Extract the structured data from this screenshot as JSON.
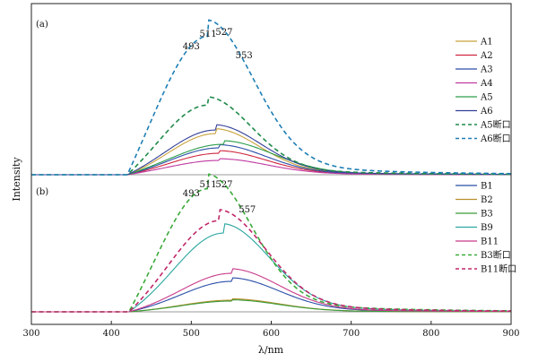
{
  "chart_data": {
    "type": "line",
    "xlabel": "λ/nm",
    "ylabel": "Intensity",
    "xlim": [
      300,
      900
    ],
    "x_ticks": [
      "300",
      "400",
      "500",
      "600",
      "700",
      "800",
      "900"
    ],
    "grid": false,
    "legend_placement": "right",
    "panels": [
      {
        "label": "(a)",
        "peak_labels": [
          "493",
          "511",
          "527",
          "553"
        ],
        "series": [
          {
            "name": "A1",
            "color": "#c8a23a",
            "dashed": false,
            "peak": 530,
            "amp": 0.46,
            "width": 55
          },
          {
            "name": "A2",
            "color": "#d0263f",
            "dashed": false,
            "peak": 535,
            "amp": 0.24,
            "width": 58
          },
          {
            "name": "A3",
            "color": "#2b4ea8",
            "dashed": false,
            "peak": 535,
            "amp": 0.3,
            "width": 58
          },
          {
            "name": "A4",
            "color": "#c03aa0",
            "dashed": false,
            "peak": 535,
            "amp": 0.16,
            "width": 60
          },
          {
            "name": "A5",
            "color": "#2a9d4a",
            "dashed": false,
            "peak": 540,
            "amp": 0.34,
            "width": 62
          },
          {
            "name": "A6",
            "color": "#33409a",
            "dashed": false,
            "peak": 530,
            "amp": 0.5,
            "width": 57
          },
          {
            "name": "A5断口",
            "color": "#1f8a4a",
            "dashed": true,
            "peak": 520,
            "amp": 0.78,
            "width": 55
          },
          {
            "name": "A6断口",
            "color": "#1e7fb5",
            "dashed": true,
            "peak": 520,
            "amp": 1.55,
            "width": 58
          }
        ]
      },
      {
        "label": "(b)",
        "peak_labels": [
          "493",
          "511",
          "527",
          "557"
        ],
        "series": [
          {
            "name": "B1",
            "color": "#2b4ea8",
            "dashed": false,
            "peak": 550,
            "amp": 0.34,
            "width": 60
          },
          {
            "name": "B2",
            "color": "#b8902a",
            "dashed": false,
            "peak": 550,
            "amp": 0.13,
            "width": 60
          },
          {
            "name": "B3",
            "color": "#3a9a3a",
            "dashed": false,
            "peak": 550,
            "amp": 0.12,
            "width": 60
          },
          {
            "name": "B9",
            "color": "#2aa6a0",
            "dashed": false,
            "peak": 540,
            "amp": 0.88,
            "width": 58
          },
          {
            "name": "B11",
            "color": "#c83a8a",
            "dashed": false,
            "peak": 550,
            "amp": 0.43,
            "width": 60
          },
          {
            "name": "B3断口",
            "color": "#3aaa3a",
            "dashed": true,
            "peak": 520,
            "amp": 1.38,
            "width": 56
          },
          {
            "name": "B11断口",
            "color": "#c0286a",
            "dashed": true,
            "peak": 535,
            "amp": 1.02,
            "width": 58
          }
        ]
      }
    ]
  }
}
